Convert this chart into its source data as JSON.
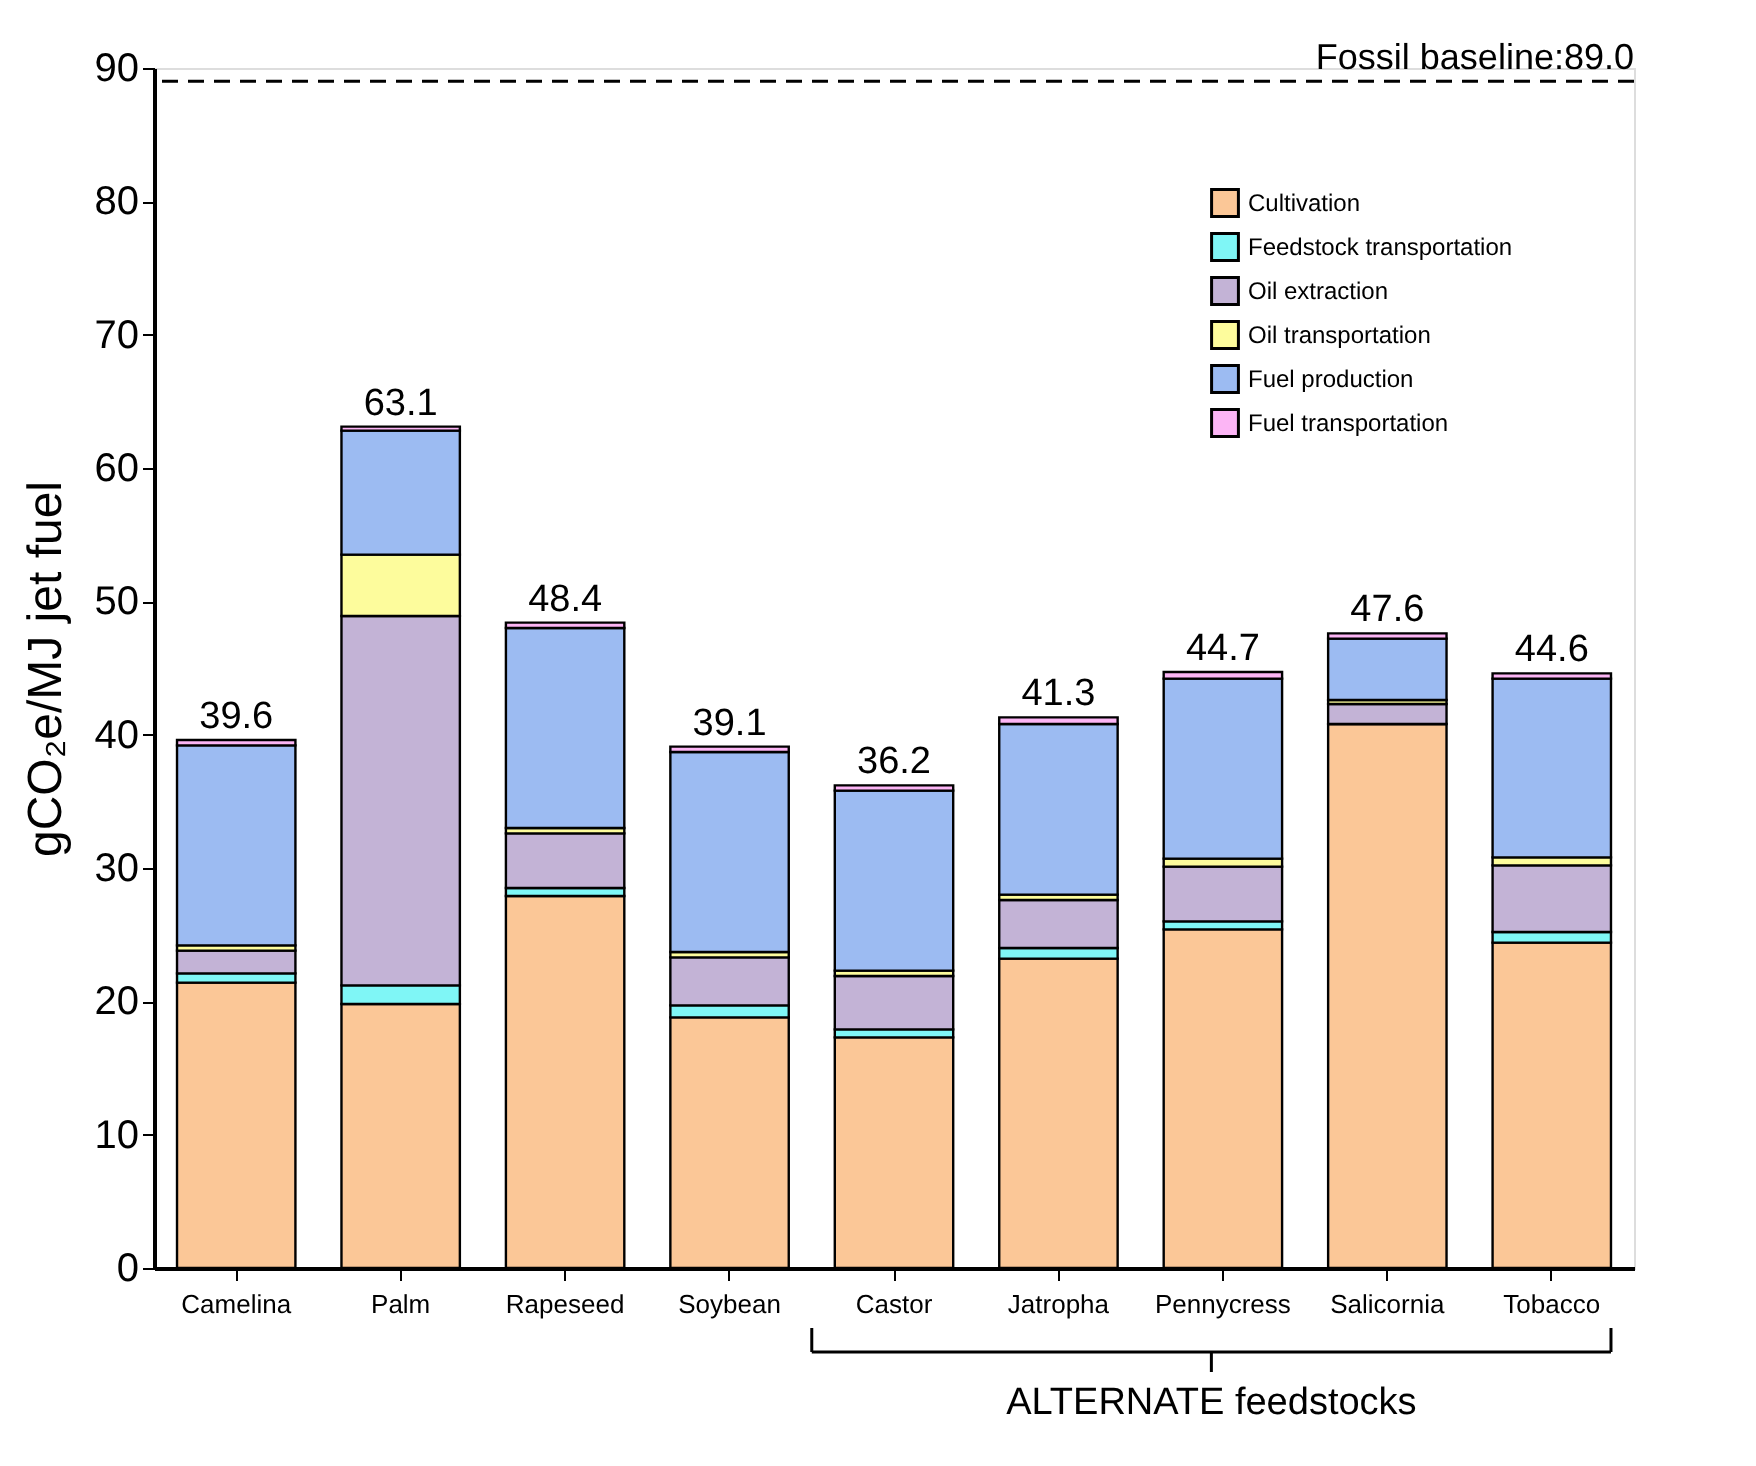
{
  "chart_data": {
    "type": "bar",
    "stacked": true,
    "ylabel": "gCO₂e/MJ jet fuel",
    "categories": [
      "Camelina",
      "Palm",
      "Rapeseed",
      "Soybean",
      "Castor",
      "Jatropha",
      "Pennycress",
      "Salicornia",
      "Tobacco"
    ],
    "series": [
      {
        "name": "Cultivation",
        "color": "#fbc797",
        "values": [
          21.4,
          19.8,
          27.9,
          18.8,
          17.3,
          23.2,
          25.4,
          40.8,
          24.4
        ]
      },
      {
        "name": "Feedstock transportation",
        "color": "#7ff6f6",
        "values": [
          0.7,
          1.4,
          0.6,
          0.9,
          0.6,
          0.8,
          0.6,
          0,
          0.8
        ]
      },
      {
        "name": "Oil extraction",
        "color": "#c3b3d6",
        "values": [
          1.7,
          27.7,
          4.1,
          3.6,
          4.0,
          3.6,
          4.1,
          1.5,
          5.0
        ]
      },
      {
        "name": "Oil transportation",
        "color": "#fdfc9c",
        "values": [
          0.4,
          4.6,
          0.4,
          0.4,
          0.4,
          0.4,
          0.6,
          0.3,
          0.6
        ]
      },
      {
        "name": "Fuel production",
        "color": "#9cbbf2",
        "values": [
          15.0,
          9.3,
          15.0,
          15.0,
          13.5,
          12.8,
          13.5,
          4.6,
          13.4
        ]
      },
      {
        "name": "Fuel transportation",
        "color": "#fcb5f5",
        "values": [
          0.4,
          0.3,
          0.4,
          0.4,
          0.4,
          0.5,
          0.5,
          0.4,
          0.4
        ]
      }
    ],
    "totals": [
      "39.6",
      "63.1",
      "48.4",
      "39.1",
      "36.2",
      "41.3",
      "44.7",
      "47.6",
      "44.6"
    ],
    "ylim": [
      0,
      90
    ],
    "yticks": [
      0,
      10,
      20,
      30,
      40,
      50,
      60,
      70,
      80,
      90
    ],
    "ref_lines": [
      {
        "axis": "y",
        "value": 89.0,
        "label": "Fossil baseline:89.0",
        "color": "#000000",
        "line_style": "dashed"
      }
    ],
    "annotations": [
      "ALTERNATE feedstocks"
    ],
    "legend": "top right",
    "grid": false
  }
}
